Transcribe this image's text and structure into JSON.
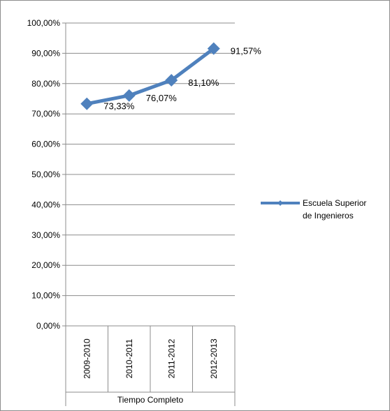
{
  "chart_data": {
    "type": "line",
    "categories": [
      "2009-2010",
      "2010-2011",
      "2011-2012",
      "2012-2013"
    ],
    "category_group": "Tiempo Completo",
    "series": [
      {
        "name": "Escuela Superior de Ingenieros",
        "values": [
          73.33,
          76.07,
          81.1,
          91.57
        ],
        "labels": [
          "73,33%",
          "76,07%",
          "81,10%",
          "91,57%"
        ],
        "color": "#4f81bd",
        "marker": "diamond"
      }
    ],
    "y_ticks": [
      "0,00%",
      "10,00%",
      "20,00%",
      "30,00%",
      "40,00%",
      "50,00%",
      "60,00%",
      "70,00%",
      "80,00%",
      "90,00%",
      "100,00%"
    ],
    "ylim": [
      0,
      100
    ],
    "grid": true,
    "legend_position": "right",
    "legend_lines": [
      "Escuela Superior",
      "de Ingenieros"
    ]
  }
}
